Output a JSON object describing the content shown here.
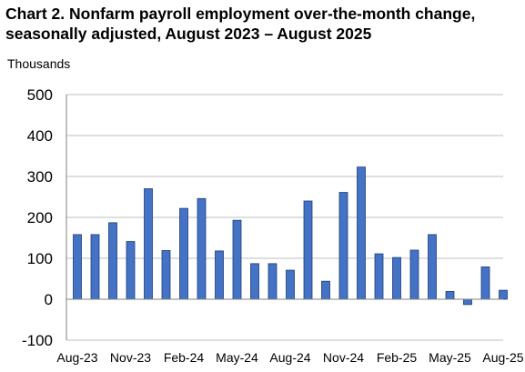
{
  "chart_data": {
    "type": "bar",
    "title": "Chart 2. Nonfarm payroll employment over-the-month change, seasonally adjusted, August 2023 – August 2025",
    "ylabel": "Thousands",
    "xlabel": "",
    "ylim": [
      -100,
      500
    ],
    "yticks": [
      "500",
      "400",
      "300",
      "200",
      "100",
      "0",
      "-100"
    ],
    "ytick_values": [
      500,
      400,
      300,
      200,
      100,
      0,
      -100
    ],
    "grid": true,
    "bar_color": "#4472C4",
    "categories": [
      "Aug-23",
      "Sep-23",
      "Oct-23",
      "Nov-23",
      "Dec-23",
      "Jan-24",
      "Feb-24",
      "Mar-24",
      "Apr-24",
      "May-24",
      "Jun-24",
      "Jul-24",
      "Aug-24",
      "Sep-24",
      "Oct-24",
      "Nov-24",
      "Dec-24",
      "Jan-25",
      "Feb-25",
      "Mar-25",
      "Apr-25",
      "May-25",
      "Jun-25",
      "Jul-25",
      "Aug-25"
    ],
    "xtick_labels": [
      "Aug-23",
      "Nov-23",
      "Feb-24",
      "May-24",
      "Aug-24",
      "Nov-24",
      "Feb-25",
      "May-25",
      "Aug-25"
    ],
    "xtick_indices": [
      0,
      3,
      6,
      9,
      12,
      15,
      18,
      21,
      24
    ],
    "values": [
      158,
      158,
      187,
      141,
      270,
      119,
      222,
      246,
      118,
      193,
      87,
      87,
      71,
      240,
      44,
      261,
      323,
      111,
      102,
      120,
      158,
      19,
      -13,
      79,
      22
    ]
  }
}
